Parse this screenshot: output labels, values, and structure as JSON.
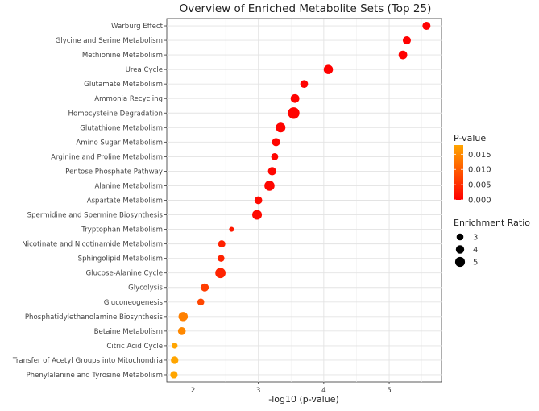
{
  "chart_data": {
    "type": "scatter",
    "title": "Overview of Enriched Metabolite Sets (Top 25)",
    "xlabel": "-log10 (p-value)",
    "ylabel": "",
    "xlim": [
      1.6,
      5.8
    ],
    "x_ticks": [
      2,
      3,
      4,
      5
    ],
    "grid": true,
    "legend_placement": "right",
    "color_legend": {
      "title": "P-value",
      "ticks": [
        0.0,
        0.005,
        0.01,
        0.015
      ],
      "tick_labels": [
        "0.000",
        "0.005",
        "0.010",
        "0.015"
      ],
      "range": [
        0.0,
        0.018
      ],
      "low_color": "#ff0000",
      "high_color": "#ffa500"
    },
    "size_legend": {
      "title": "Enrichment Ratio",
      "values": [
        3,
        4,
        5
      ],
      "labels": [
        "3",
        "4",
        "5"
      ]
    },
    "points": [
      {
        "name": "Warburg Effect",
        "x": 5.57,
        "ratio": 3.8,
        "p": 2.7e-06
      },
      {
        "name": "Glycine and Serine Metabolism",
        "x": 5.27,
        "ratio": 3.8,
        "p": 5.4e-06
      },
      {
        "name": "Methionine Metabolism",
        "x": 5.21,
        "ratio": 4.2,
        "p": 6.2e-06
      },
      {
        "name": "Urea Cycle",
        "x": 4.07,
        "ratio": 4.6,
        "p": 8.5e-05
      },
      {
        "name": "Glutamate Metabolism",
        "x": 3.7,
        "ratio": 3.6,
        "p": 0.0002
      },
      {
        "name": "Ammonia Recycling",
        "x": 3.56,
        "ratio": 4.2,
        "p": 0.00028
      },
      {
        "name": "Homocysteine Degradation",
        "x": 3.54,
        "ratio": 6.2,
        "p": 0.00029
      },
      {
        "name": "Glutathione Metabolism",
        "x": 3.34,
        "ratio": 4.9,
        "p": 0.00046
      },
      {
        "name": "Amino Sugar Metabolism",
        "x": 3.27,
        "ratio": 3.8,
        "p": 0.00054
      },
      {
        "name": "Arginine and Proline Metabolism",
        "x": 3.25,
        "ratio": 3.1,
        "p": 0.00056
      },
      {
        "name": "Pentose Phosphate Pathway",
        "x": 3.21,
        "ratio": 3.9,
        "p": 0.00062
      },
      {
        "name": "Alanine Metabolism",
        "x": 3.17,
        "ratio": 5.2,
        "p": 0.00068
      },
      {
        "name": "Aspartate Metabolism",
        "x": 3.0,
        "ratio": 3.6,
        "p": 0.001
      },
      {
        "name": "Spermidine and Spermine Biosynthesis",
        "x": 2.98,
        "ratio": 4.9,
        "p": 0.00105
      },
      {
        "name": "Tryptophan Metabolism",
        "x": 2.59,
        "ratio": 1.6,
        "p": 0.0026
      },
      {
        "name": "Nicotinate and Nicotinamide Metabolism",
        "x": 2.44,
        "ratio": 3.2,
        "p": 0.0036
      },
      {
        "name": "Sphingolipid Metabolism",
        "x": 2.43,
        "ratio": 2.9,
        "p": 0.0037
      },
      {
        "name": "Glucose-Alanine Cycle",
        "x": 2.42,
        "ratio": 5.3,
        "p": 0.0038
      },
      {
        "name": "Glycolysis",
        "x": 2.18,
        "ratio": 3.8,
        "p": 0.0066
      },
      {
        "name": "Gluconeogenesis",
        "x": 2.12,
        "ratio": 3.0,
        "p": 0.0076
      },
      {
        "name": "Phosphatidylethanolamine Biosynthesis",
        "x": 1.85,
        "ratio": 4.6,
        "p": 0.014
      },
      {
        "name": "Betaine Metabolism",
        "x": 1.83,
        "ratio": 3.6,
        "p": 0.0148
      },
      {
        "name": "Citric Acid Cycle",
        "x": 1.72,
        "ratio": 2.3,
        "p": 0.019
      },
      {
        "name": "Transfer of Acetyl Groups into Mitochondria",
        "x": 1.72,
        "ratio": 3.4,
        "p": 0.019
      },
      {
        "name": "Phenylalanine and Tyrosine Metabolism",
        "x": 1.71,
        "ratio": 3.3,
        "p": 0.0195
      }
    ]
  }
}
